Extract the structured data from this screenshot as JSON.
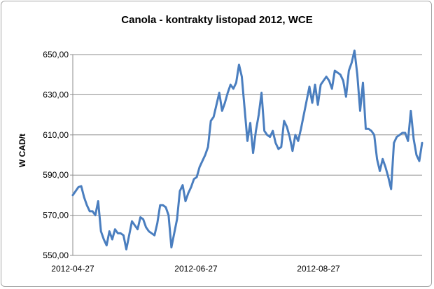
{
  "chart_data": {
    "type": "line",
    "title": "Canola - kontrakty listopad 2012, WCE",
    "xlabel": "",
    "ylabel": "W CAD/t",
    "ylim": [
      550,
      650
    ],
    "yticks": [
      "650,00",
      "630,00",
      "610,00",
      "590,00",
      "570,00",
      "550,00"
    ],
    "ytick_values": [
      650,
      630,
      610,
      590,
      570,
      550
    ],
    "xticks": [
      "2012-04-27",
      "2012-06-27",
      "2012-08-27"
    ],
    "grid": true,
    "legend": "none",
    "series_color": "#4a7ebf",
    "series": [
      {
        "values": [
          580,
          582,
          584,
          584.5,
          579,
          575,
          572,
          572,
          570,
          577,
          562,
          558,
          555,
          562,
          558,
          563,
          561,
          561,
          560,
          553,
          560,
          567,
          565,
          563,
          569,
          568,
          564,
          562,
          561,
          560,
          566,
          575,
          575,
          574,
          570,
          554,
          561,
          568,
          582,
          585,
          577,
          581,
          584,
          588,
          589,
          594,
          597,
          600,
          604,
          617,
          619,
          625,
          631,
          622,
          626,
          631,
          635,
          633,
          636,
          645,
          639,
          623,
          607,
          616,
          601,
          612,
          620,
          631,
          612,
          610,
          609,
          612,
          606,
          603,
          604,
          617,
          614,
          609,
          602,
          610,
          607,
          613,
          620,
          627,
          634,
          626,
          635,
          625,
          635,
          637,
          639,
          637,
          633,
          642,
          641,
          640,
          637,
          629,
          642,
          646,
          652,
          640,
          622,
          636,
          613,
          613,
          612,
          610,
          598,
          592,
          598,
          594,
          589,
          583,
          606,
          609,
          610,
          611,
          611,
          607,
          622,
          608,
          600,
          597,
          606
        ]
      }
    ]
  }
}
